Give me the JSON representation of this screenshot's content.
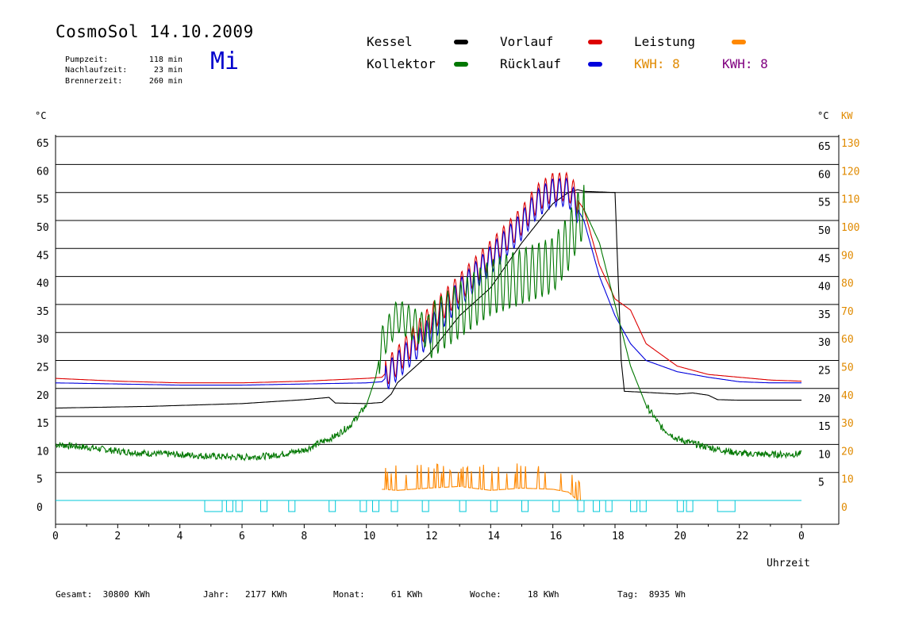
{
  "header": {
    "title": "CosmoSol 14.10.2009",
    "weekday": "Mi",
    "stats": [
      {
        "label": "Pumpzeit:",
        "value": "118 min"
      },
      {
        "label": "Nachlaufzeit:",
        "value": "23 min"
      },
      {
        "label": "Brennerzeit:",
        "value": "260 min"
      }
    ]
  },
  "legend": {
    "kessel": {
      "label": "Kessel",
      "color": "#000000"
    },
    "vorlauf": {
      "label": "Vorlauf",
      "color": "#dd0000"
    },
    "leistung": {
      "label": "Leistung",
      "color": "#ff8800"
    },
    "kollektor": {
      "label": "Kollektor",
      "color": "#007700"
    },
    "ruecklauf": {
      "label": "Rücklauf",
      "color": "#0000dd"
    },
    "kwh_orange": {
      "label": "KWH: 8",
      "color": "#e08a00"
    },
    "kwh_purple": {
      "label": "KWH: 8",
      "color": "#800080"
    }
  },
  "chart_data": {
    "type": "line",
    "x_unit_label": "Uhrzeit",
    "y_left_unit": "°C",
    "y_right_unit": "°C",
    "y_right2_unit": "KW",
    "xlim": [
      0,
      24
    ],
    "ylim": [
      -4,
      70
    ],
    "x_ticks": [
      "0",
      "2",
      "4",
      "6",
      "8",
      "10",
      "12",
      "14",
      "16",
      "18",
      "20",
      "22",
      "0"
    ],
    "y_ticks": [
      0,
      5,
      10,
      15,
      20,
      25,
      30,
      35,
      40,
      45,
      50,
      55,
      60,
      65
    ],
    "kw_ticks": [
      0,
      10,
      20,
      30,
      40,
      50,
      60,
      70,
      80,
      90,
      100,
      110,
      120,
      130
    ],
    "grid": true,
    "series": [
      {
        "name": "Kessel",
        "color": "#000000",
        "x": [
          0,
          3,
          6,
          8,
          8.8,
          9,
          10,
          10.5,
          10.8,
          11,
          12,
          13,
          14,
          15,
          16,
          16.5,
          16.8,
          17,
          18,
          18.1,
          18.2,
          18.3,
          19,
          20,
          20.5,
          21,
          21.3,
          22,
          23,
          24
        ],
        "y": [
          16.5,
          16.8,
          17.3,
          18,
          18.4,
          17.4,
          17.3,
          17.5,
          19,
          21,
          26,
          33,
          38,
          46,
          53,
          55,
          55.5,
          55.2,
          55,
          40,
          25,
          19.5,
          19.3,
          19,
          19.2,
          18.8,
          18,
          17.9,
          17.9,
          17.9
        ]
      },
      {
        "name": "Vorlauf",
        "color": "#dd0000",
        "x": [
          0,
          2,
          4,
          6,
          8,
          10,
          10.5,
          11,
          12,
          13,
          14,
          15,
          15.5,
          16,
          16.5,
          17,
          17.5,
          18,
          18.5,
          19,
          20,
          21,
          22,
          23,
          24
        ],
        "y": [
          21.8,
          21.3,
          21,
          21,
          21.3,
          21.8,
          22,
          25,
          32,
          38,
          44,
          50,
          54,
          56,
          56,
          52,
          42,
          36,
          34,
          28,
          24,
          22.5,
          22,
          21.5,
          21.3
        ]
      },
      {
        "name": "Rücklauf",
        "color": "#0000dd",
        "x": [
          0,
          2,
          4,
          6,
          8,
          10,
          10.5,
          11,
          12,
          13,
          14,
          15,
          15.5,
          16,
          16.5,
          17,
          17.5,
          18,
          18.5,
          19,
          20,
          21,
          22,
          23,
          24
        ],
        "y": [
          21,
          20.8,
          20.6,
          20.6,
          20.8,
          21,
          21.2,
          24,
          30,
          37,
          43,
          49,
          53,
          55,
          55,
          50,
          40,
          33,
          28,
          25,
          23,
          22,
          21.2,
          21,
          21
        ]
      },
      {
        "name": "Kollektor",
        "color": "#007700",
        "x": [
          0,
          1,
          2,
          3,
          4,
          5,
          6,
          7,
          8,
          9,
          9.5,
          10,
          10.3,
          10.5,
          11,
          12,
          13,
          14,
          15,
          16,
          16.5,
          16.8,
          17,
          17.5,
          18,
          18.5,
          19,
          19.5,
          20,
          20.5,
          21,
          22,
          23,
          24
        ],
        "y": [
          10,
          9.5,
          8.8,
          8.4,
          8.2,
          7.9,
          7.7,
          8,
          9,
          11.5,
          13.5,
          17,
          22,
          28,
          33,
          30,
          34,
          38,
          40,
          42,
          46,
          50,
          52,
          46,
          35,
          24,
          17,
          13,
          11,
          10.2,
          9.5,
          8.4,
          8.2,
          8.3
        ]
      },
      {
        "name": "Leistung",
        "color": "#ff8800",
        "x": [
          10.5,
          11,
          12,
          13,
          14,
          15,
          16,
          16.5,
          16.8
        ],
        "y": [
          2.0,
          1.8,
          2.2,
          2.5,
          1.8,
          2.2,
          2.0,
          1.5,
          0
        ]
      }
    ],
    "pump_pulses": [
      4.8,
      5.5,
      5.8,
      6.6,
      7.5,
      8.8,
      9.8,
      10.2,
      10.8,
      11.8,
      13,
      14,
      15,
      16,
      16.8,
      17.3,
      17.7,
      18.5,
      18.8,
      20,
      20.3,
      21.3
    ]
  },
  "totals": [
    {
      "label": "Gesamt:",
      "value": "30800 KWh"
    },
    {
      "label": "Jahr:",
      "value": "2177 KWh"
    },
    {
      "label": "Monat:",
      "value": "61 KWh"
    },
    {
      "label": "Woche:",
      "value": "18 KWh"
    },
    {
      "label": "Tag:",
      "value": "8935 Wh"
    }
  ]
}
